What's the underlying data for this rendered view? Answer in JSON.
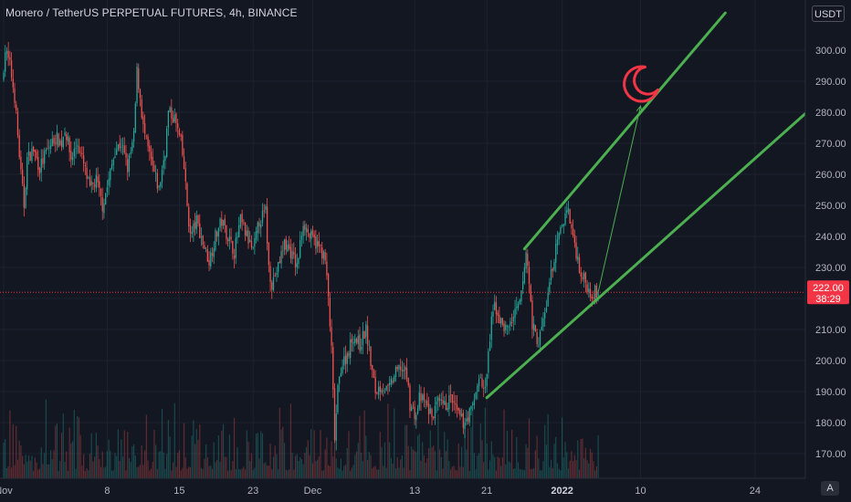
{
  "header": {
    "title": "Monero / TetherUS PERPETUAL FUTURES, 4h, BINANCE",
    "currency": "USDT"
  },
  "price_badge": {
    "price": "222.00",
    "countdown": "38:29",
    "color": "#f23645"
  },
  "auto_scale_label": "A",
  "colors": {
    "background": "#131722",
    "up": "#26a69a",
    "down": "#ef5350",
    "trendline": "#4caf50",
    "moon": "#f23645",
    "grid": "#1e222d"
  },
  "chart_data": {
    "type": "candlestick",
    "symbol": "XMRUSDT",
    "timeframe": "4h",
    "exchange": "BINANCE",
    "ylim": [
      162,
      312
    ],
    "y_ticks": [
      170,
      180,
      190,
      200,
      210,
      220,
      230,
      240,
      250,
      260,
      270,
      280,
      290,
      300
    ],
    "y_tick_labels": [
      "170.00",
      "180.00",
      "190.00",
      "200.00",
      "210.00",
      "220.00",
      "230.00",
      "240.00",
      "250.00",
      "260.00",
      "270.00",
      "280.00",
      "290.00",
      "300.00"
    ],
    "x_ticks": [
      {
        "label": "Nov",
        "bold": false
      },
      {
        "label": "8",
        "bold": false
      },
      {
        "label": "15",
        "bold": false
      },
      {
        "label": "23",
        "bold": false
      },
      {
        "label": "Dec",
        "bold": false
      },
      {
        "label": "13",
        "bold": false
      },
      {
        "label": "21",
        "bold": false
      },
      {
        "label": "2022",
        "bold": true
      },
      {
        "label": "10",
        "bold": false
      },
      {
        "label": "24",
        "bold": false
      }
    ],
    "x_tick_bars": [
      0,
      66,
      112,
      159,
      197,
      262,
      308,
      356,
      406,
      479
    ],
    "bar_count": 380,
    "price_path": [
      [
        0,
        290
      ],
      [
        2,
        300
      ],
      [
        5,
        295
      ],
      [
        8,
        285
      ],
      [
        12,
        260
      ],
      [
        14,
        250
      ],
      [
        16,
        265
      ],
      [
        20,
        268
      ],
      [
        24,
        262
      ],
      [
        28,
        267
      ],
      [
        34,
        272
      ],
      [
        38,
        270
      ],
      [
        40,
        275
      ],
      [
        44,
        265
      ],
      [
        48,
        270
      ],
      [
        52,
        263
      ],
      [
        56,
        255
      ],
      [
        60,
        258
      ],
      [
        64,
        250
      ],
      [
        68,
        258
      ],
      [
        72,
        268
      ],
      [
        76,
        270
      ],
      [
        80,
        262
      ],
      [
        84,
        272
      ],
      [
        86,
        293
      ],
      [
        88,
        285
      ],
      [
        90,
        275
      ],
      [
        92,
        270
      ],
      [
        96,
        262
      ],
      [
        100,
        255
      ],
      [
        104,
        268
      ],
      [
        106,
        280
      ],
      [
        110,
        278
      ],
      [
        114,
        270
      ],
      [
        116,
        262
      ],
      [
        118,
        250
      ],
      [
        120,
        240
      ],
      [
        124,
        245
      ],
      [
        128,
        238
      ],
      [
        132,
        232
      ],
      [
        136,
        240
      ],
      [
        140,
        245
      ],
      [
        144,
        240
      ],
      [
        148,
        235
      ],
      [
        152,
        245
      ],
      [
        156,
        240
      ],
      [
        160,
        235
      ],
      [
        164,
        245
      ],
      [
        168,
        248
      ],
      [
        170,
        230
      ],
      [
        172,
        225
      ],
      [
        176,
        230
      ],
      [
        180,
        238
      ],
      [
        184,
        235
      ],
      [
        188,
        230
      ],
      [
        192,
        245
      ],
      [
        196,
        240
      ],
      [
        200,
        238
      ],
      [
        204,
        235
      ],
      [
        206,
        232
      ],
      [
        208,
        220
      ],
      [
        210,
        203
      ],
      [
        212,
        175
      ],
      [
        214,
        190
      ],
      [
        216,
        198
      ],
      [
        220,
        202
      ],
      [
        224,
        208
      ],
      [
        228,
        205
      ],
      [
        232,
        210
      ],
      [
        236,
        196
      ],
      [
        238,
        190
      ],
      [
        242,
        192
      ],
      [
        246,
        190
      ],
      [
        250,
        195
      ],
      [
        254,
        198
      ],
      [
        258,
        195
      ],
      [
        260,
        186
      ],
      [
        264,
        182
      ],
      [
        266,
        188
      ],
      [
        270,
        186
      ],
      [
        274,
        182
      ],
      [
        278,
        186
      ],
      [
        282,
        185
      ],
      [
        286,
        188
      ],
      [
        290,
        183
      ],
      [
        294,
        180
      ],
      [
        298,
        183
      ],
      [
        300,
        185
      ],
      [
        302,
        190
      ],
      [
        304,
        195
      ],
      [
        306,
        192
      ],
      [
        308,
        190
      ],
      [
        310,
        202
      ],
      [
        312,
        212
      ],
      [
        314,
        218
      ],
      [
        318,
        212
      ],
      [
        322,
        210
      ],
      [
        326,
        214
      ],
      [
        330,
        218
      ],
      [
        332,
        225
      ],
      [
        334,
        235
      ],
      [
        336,
        225
      ],
      [
        338,
        212
      ],
      [
        340,
        208
      ],
      [
        342,
        206
      ],
      [
        346,
        215
      ],
      [
        350,
        228
      ],
      [
        354,
        238
      ],
      [
        358,
        245
      ],
      [
        360,
        250
      ],
      [
        362,
        245
      ],
      [
        364,
        240
      ],
      [
        366,
        235
      ],
      [
        368,
        230
      ],
      [
        370,
        227
      ],
      [
        372,
        225
      ],
      [
        374,
        223
      ],
      [
        376,
        222
      ],
      [
        379,
        222
      ]
    ],
    "trendlines": [
      {
        "name": "lower-support",
        "from": {
          "bar": 308,
          "price": 188
        },
        "to": {
          "bar": 512,
          "price": 280
        }
      },
      {
        "name": "upper-resistance",
        "from": {
          "bar": 332,
          "price": 236
        },
        "to": {
          "bar": 460,
          "price": 312
        }
      },
      {
        "name": "target-arrow",
        "from": {
          "bar": 379,
          "price": 222
        },
        "to": {
          "bar": 406,
          "price": 282
        }
      }
    ],
    "moon_annotation": {
      "bar": 406,
      "price": 289
    },
    "last_price": 222.0
  }
}
